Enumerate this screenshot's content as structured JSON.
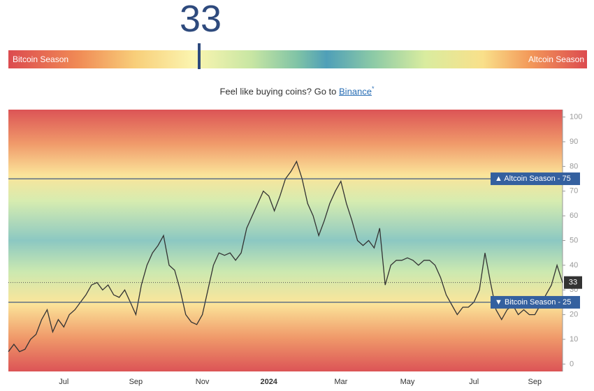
{
  "gauge": {
    "value": 33,
    "min_label": "Bitcoin Season",
    "max_label": "Altcoin Season",
    "range": [
      0,
      100
    ]
  },
  "promo": {
    "text": "Feel like buying coins? Go to ",
    "link": "Binance",
    "mark": "*"
  },
  "chart_data": {
    "type": "line",
    "categories": [
      null,
      null,
      null,
      null,
      null,
      null,
      null,
      null,
      null,
      null,
      "Jul",
      null,
      null,
      null,
      null,
      null,
      null,
      null,
      null,
      null,
      null,
      null,
      null,
      "Sep",
      null,
      null,
      null,
      null,
      null,
      null,
      null,
      null,
      null,
      null,
      null,
      "Nov",
      null,
      null,
      null,
      null,
      null,
      null,
      null,
      null,
      null,
      null,
      null,
      "2024",
      null,
      null,
      null,
      null,
      null,
      null,
      null,
      null,
      null,
      null,
      null,
      null,
      "Mar",
      null,
      null,
      null,
      null,
      null,
      null,
      null,
      null,
      null,
      null,
      null,
      "May",
      null,
      null,
      null,
      null,
      null,
      null,
      null,
      null,
      null,
      null,
      null,
      "Jul",
      null,
      null,
      null,
      null,
      null,
      null,
      null,
      null,
      null,
      null,
      "Sep",
      null,
      null,
      null,
      null,
      null
    ],
    "values": [
      5,
      8,
      5,
      6,
      10,
      12,
      18,
      22,
      13,
      18,
      15,
      20,
      22,
      25,
      28,
      32,
      33,
      30,
      32,
      28,
      27,
      30,
      25,
      20,
      32,
      40,
      45,
      48,
      52,
      40,
      38,
      30,
      20,
      17,
      16,
      20,
      30,
      40,
      45,
      44,
      45,
      42,
      45,
      55,
      60,
      65,
      70,
      68,
      62,
      68,
      75,
      78,
      82,
      75,
      65,
      60,
      52,
      58,
      65,
      70,
      74,
      65,
      58,
      50,
      48,
      50,
      47,
      55,
      32,
      40,
      42,
      42,
      43,
      42,
      40,
      42,
      42,
      40,
      35,
      28,
      24,
      20,
      23,
      23,
      25,
      30,
      45,
      33,
      22,
      18,
      22,
      24,
      20,
      22,
      20,
      20,
      24,
      28,
      32,
      40,
      33
    ],
    "color": "#333333",
    "ylim": [
      -3,
      103
    ],
    "yticks": [
      0,
      10,
      20,
      30,
      40,
      50,
      60,
      70,
      80,
      90,
      100
    ],
    "grid": false,
    "annotations": [
      {
        "value": 75,
        "label": "▲ Altcoin Season - 75"
      },
      {
        "value": 25,
        "label": "▼ Bitcoin Season - 25"
      }
    ],
    "current": {
      "value": 33
    }
  }
}
